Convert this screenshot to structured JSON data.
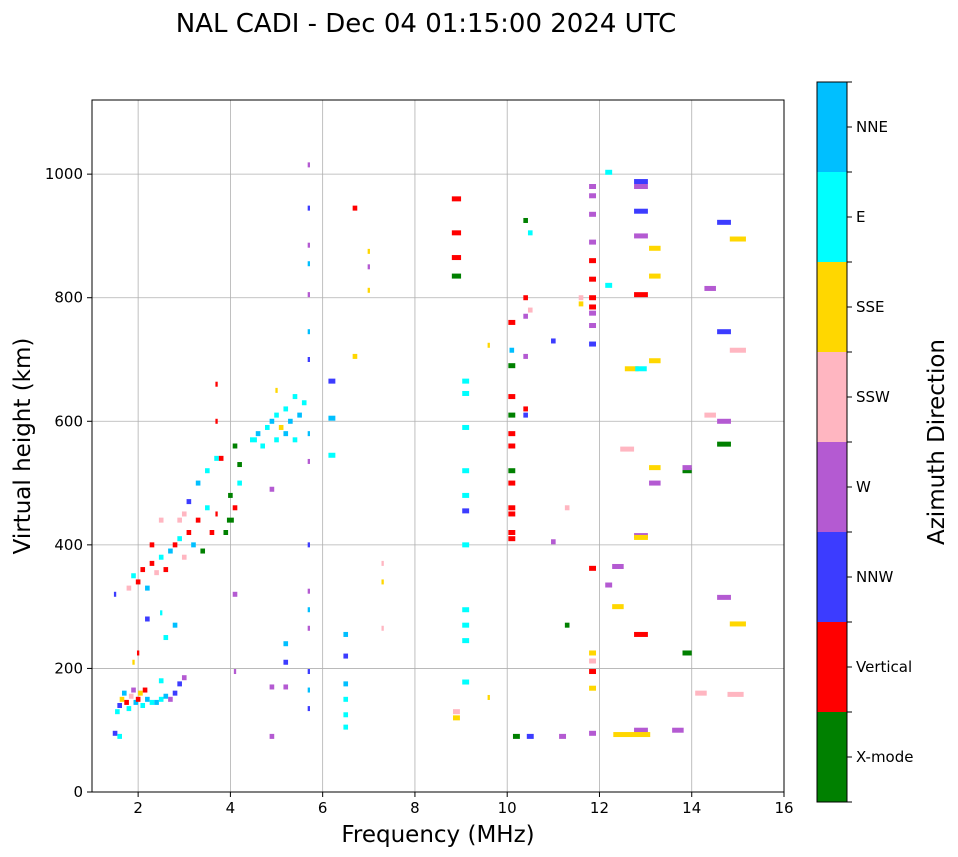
{
  "chart_data": {
    "type": "scatter",
    "title": "NAL CADI - Dec 04 01:15:00 2024 UTC",
    "xlabel": "Frequency (MHz)",
    "ylabel": "Virtual height (km)",
    "xlim": [
      1,
      16
    ],
    "ylim": [
      0,
      1120
    ],
    "xticks": [
      2,
      4,
      6,
      8,
      10,
      12,
      14,
      16
    ],
    "yticks": [
      0,
      200,
      400,
      600,
      800,
      1000
    ],
    "grid": true,
    "colorbar": {
      "label": "Azimuth Direction",
      "categories": [
        "X-mode",
        "Vertical",
        "NNW",
        "W",
        "SSW",
        "SSE",
        "E",
        "NNE"
      ],
      "colors": [
        "#008000",
        "#ff0000",
        "#3c3cff",
        "#b45ad2",
        "#ffb6c1",
        "#ffd700",
        "#00ffff",
        "#00bfff"
      ]
    },
    "points_format": [
      "frequency_mhz",
      "height_km",
      "category_index",
      "width_mhz"
    ],
    "points": [
      [
        1.5,
        95,
        2,
        0.1
      ],
      [
        1.6,
        90,
        6,
        0.1
      ],
      [
        1.55,
        130,
        6,
        0.1
      ],
      [
        1.6,
        140,
        2,
        0.1
      ],
      [
        1.65,
        150,
        5,
        0.1
      ],
      [
        1.7,
        160,
        7,
        0.1
      ],
      [
        1.75,
        145,
        1,
        0.1
      ],
      [
        1.8,
        135,
        6,
        0.1
      ],
      [
        1.85,
        155,
        4,
        0.1
      ],
      [
        1.9,
        165,
        3,
        0.1
      ],
      [
        1.95,
        145,
        7,
        0.1
      ],
      [
        2.0,
        150,
        1,
        0.1
      ],
      [
        2.05,
        160,
        5,
        0.1
      ],
      [
        2.1,
        140,
        6,
        0.1
      ],
      [
        2.15,
        165,
        1,
        0.1
      ],
      [
        2.2,
        150,
        7,
        0.1
      ],
      [
        2.3,
        145,
        6,
        0.1
      ],
      [
        2.4,
        145,
        7,
        0.1
      ],
      [
        2.5,
        150,
        6,
        0.1
      ],
      [
        2.6,
        155,
        7,
        0.1
      ],
      [
        2.7,
        150,
        3,
        0.1
      ],
      [
        2.8,
        160,
        2,
        0.1
      ],
      [
        2.9,
        175,
        2,
        0.1
      ],
      [
        3.0,
        185,
        3,
        0.1
      ],
      [
        2.0,
        225,
        1,
        0.05
      ],
      [
        1.9,
        210,
        5,
        0.05
      ],
      [
        2.5,
        180,
        6,
        0.1
      ],
      [
        2.6,
        250,
        6,
        0.1
      ],
      [
        2.8,
        270,
        7,
        0.1
      ],
      [
        1.5,
        320,
        2,
        0.05
      ],
      [
        1.8,
        330,
        4,
        0.1
      ],
      [
        1.9,
        350,
        6,
        0.1
      ],
      [
        2.0,
        340,
        1,
        0.1
      ],
      [
        2.1,
        360,
        1,
        0.1
      ],
      [
        2.2,
        330,
        7,
        0.1
      ],
      [
        2.3,
        370,
        1,
        0.1
      ],
      [
        2.4,
        355,
        4,
        0.1
      ],
      [
        2.5,
        380,
        6,
        0.1
      ],
      [
        2.6,
        360,
        1,
        0.1
      ],
      [
        2.7,
        390,
        7,
        0.1
      ],
      [
        2.8,
        400,
        1,
        0.1
      ],
      [
        2.9,
        410,
        6,
        0.1
      ],
      [
        3.0,
        380,
        4,
        0.1
      ],
      [
        3.1,
        420,
        1,
        0.1
      ],
      [
        3.2,
        400,
        7,
        0.1
      ],
      [
        3.3,
        440,
        1,
        0.1
      ],
      [
        3.4,
        390,
        0,
        0.1
      ],
      [
        3.5,
        460,
        6,
        0.1
      ],
      [
        3.6,
        420,
        1,
        0.1
      ],
      [
        3.7,
        450,
        1,
        0.05
      ],
      [
        3.0,
        450,
        4,
        0.1
      ],
      [
        2.9,
        440,
        4,
        0.1
      ],
      [
        3.1,
        470,
        2,
        0.1
      ],
      [
        3.3,
        500,
        7,
        0.1
      ],
      [
        3.5,
        520,
        6,
        0.1
      ],
      [
        3.7,
        540,
        6,
        0.1
      ],
      [
        2.5,
        440,
        4,
        0.1
      ],
      [
        2.3,
        400,
        1,
        0.1
      ],
      [
        2.2,
        280,
        2,
        0.1
      ],
      [
        2.5,
        290,
        6,
        0.05
      ],
      [
        3.8,
        540,
        1,
        0.1
      ],
      [
        3.9,
        420,
        0,
        0.1
      ],
      [
        4.0,
        440,
        0,
        0.15
      ],
      [
        4.0,
        480,
        0,
        0.1
      ],
      [
        4.1,
        460,
        1,
        0.1
      ],
      [
        4.2,
        500,
        6,
        0.1
      ],
      [
        4.2,
        530,
        0,
        0.1
      ],
      [
        4.1,
        560,
        0,
        0.1
      ],
      [
        3.7,
        600,
        1,
        0.05
      ],
      [
        3.7,
        660,
        1,
        0.05
      ],
      [
        4.1,
        320,
        3,
        0.1
      ],
      [
        4.1,
        195,
        3,
        0.05
      ],
      [
        4.5,
        570,
        6,
        0.15
      ],
      [
        4.6,
        580,
        7,
        0.1
      ],
      [
        4.7,
        560,
        6,
        0.1
      ],
      [
        4.8,
        590,
        6,
        0.1
      ],
      [
        4.9,
        600,
        7,
        0.1
      ],
      [
        5.0,
        610,
        6,
        0.1
      ],
      [
        5.1,
        590,
        5,
        0.1
      ],
      [
        5.2,
        620,
        6,
        0.1
      ],
      [
        5.3,
        600,
        7,
        0.1
      ],
      [
        5.4,
        640,
        6,
        0.1
      ],
      [
        5.5,
        610,
        7,
        0.1
      ],
      [
        5.6,
        630,
        6,
        0.1
      ],
      [
        5.0,
        570,
        6,
        0.1
      ],
      [
        5.2,
        580,
        7,
        0.1
      ],
      [
        5.4,
        570,
        6,
        0.1
      ],
      [
        5.0,
        650,
        5,
        0.05
      ],
      [
        4.9,
        490,
        3,
        0.1
      ],
      [
        4.9,
        170,
        3,
        0.1
      ],
      [
        4.9,
        90,
        3,
        0.1
      ],
      [
        5.2,
        170,
        3,
        0.1
      ],
      [
        5.2,
        240,
        7,
        0.1
      ],
      [
        5.2,
        210,
        2,
        0.1
      ],
      [
        5.7,
        1015,
        3,
        0.05
      ],
      [
        5.7,
        945,
        2,
        0.05
      ],
      [
        5.7,
        885,
        3,
        0.05
      ],
      [
        5.7,
        855,
        7,
        0.05
      ],
      [
        5.7,
        805,
        3,
        0.05
      ],
      [
        5.7,
        745,
        7,
        0.05
      ],
      [
        5.7,
        700,
        2,
        0.05
      ],
      [
        5.7,
        580,
        7,
        0.05
      ],
      [
        5.7,
        535,
        3,
        0.05
      ],
      [
        5.7,
        400,
        2,
        0.05
      ],
      [
        5.7,
        325,
        3,
        0.05
      ],
      [
        5.7,
        295,
        7,
        0.05
      ],
      [
        5.7,
        265,
        3,
        0.05
      ],
      [
        5.7,
        195,
        2,
        0.05
      ],
      [
        5.7,
        165,
        7,
        0.05
      ],
      [
        5.7,
        135,
        2,
        0.05
      ],
      [
        6.2,
        665,
        2,
        0.15
      ],
      [
        6.2,
        605,
        7,
        0.15
      ],
      [
        6.2,
        545,
        6,
        0.15
      ],
      [
        6.5,
        255,
        7,
        0.1
      ],
      [
        6.5,
        220,
        2,
        0.1
      ],
      [
        6.5,
        175,
        7,
        0.1
      ],
      [
        6.5,
        150,
        6,
        0.1
      ],
      [
        6.5,
        125,
        6,
        0.1
      ],
      [
        6.5,
        105,
        6,
        0.1
      ],
      [
        6.7,
        945,
        1,
        0.1
      ],
      [
        6.7,
        705,
        5,
        0.1
      ],
      [
        7.0,
        875,
        5,
        0.05
      ],
      [
        7.0,
        850,
        3,
        0.05
      ],
      [
        7.0,
        812,
        5,
        0.05
      ],
      [
        7.3,
        370,
        4,
        0.05
      ],
      [
        7.3,
        340,
        5,
        0.05
      ],
      [
        7.3,
        265,
        4,
        0.05
      ],
      [
        8.9,
        960,
        1,
        0.2
      ],
      [
        8.9,
        905,
        1,
        0.2
      ],
      [
        8.9,
        865,
        1,
        0.2
      ],
      [
        8.9,
        835,
        0,
        0.2
      ],
      [
        8.9,
        130,
        4,
        0.15
      ],
      [
        8.9,
        120,
        5,
        0.15
      ],
      [
        9.1,
        665,
        6,
        0.15
      ],
      [
        9.1,
        645,
        6,
        0.15
      ],
      [
        9.1,
        590,
        6,
        0.15
      ],
      [
        9.1,
        520,
        6,
        0.15
      ],
      [
        9.1,
        480,
        6,
        0.15
      ],
      [
        9.1,
        455,
        2,
        0.15
      ],
      [
        9.1,
        400,
        6,
        0.15
      ],
      [
        9.1,
        295,
        6,
        0.15
      ],
      [
        9.1,
        270,
        6,
        0.15
      ],
      [
        9.1,
        245,
        6,
        0.15
      ],
      [
        9.1,
        178,
        6,
        0.15
      ],
      [
        9.6,
        723,
        5,
        0.05
      ],
      [
        9.6,
        153,
        5,
        0.05
      ],
      [
        10.1,
        760,
        1,
        0.15
      ],
      [
        10.1,
        690,
        0,
        0.15
      ],
      [
        10.1,
        640,
        1,
        0.15
      ],
      [
        10.1,
        610,
        0,
        0.15
      ],
      [
        10.1,
        580,
        1,
        0.15
      ],
      [
        10.1,
        560,
        1,
        0.15
      ],
      [
        10.1,
        520,
        0,
        0.15
      ],
      [
        10.1,
        500,
        1,
        0.15
      ],
      [
        10.1,
        460,
        1,
        0.15
      ],
      [
        10.1,
        450,
        1,
        0.15
      ],
      [
        10.1,
        420,
        1,
        0.15
      ],
      [
        10.1,
        410,
        1,
        0.15
      ],
      [
        10.1,
        715,
        7,
        0.1
      ],
      [
        10.2,
        90,
        0,
        0.15
      ],
      [
        10.4,
        925,
        0,
        0.1
      ],
      [
        10.4,
        800,
        1,
        0.1
      ],
      [
        10.4,
        770,
        3,
        0.1
      ],
      [
        10.4,
        705,
        3,
        0.1
      ],
      [
        10.4,
        620,
        1,
        0.1
      ],
      [
        10.4,
        610,
        2,
        0.1
      ],
      [
        10.5,
        905,
        6,
        0.1
      ],
      [
        10.5,
        780,
        4,
        0.1
      ],
      [
        10.5,
        90,
        2,
        0.15
      ],
      [
        11.0,
        730,
        2,
        0.1
      ],
      [
        11.0,
        405,
        3,
        0.1
      ],
      [
        11.3,
        460,
        4,
        0.1
      ],
      [
        11.2,
        90,
        3,
        0.15
      ],
      [
        11.85,
        980,
        3,
        0.15
      ],
      [
        11.85,
        965,
        3,
        0.15
      ],
      [
        11.85,
        935,
        3,
        0.15
      ],
      [
        11.85,
        890,
        3,
        0.15
      ],
      [
        11.85,
        860,
        1,
        0.15
      ],
      [
        11.85,
        830,
        1,
        0.15
      ],
      [
        11.85,
        800,
        1,
        0.15
      ],
      [
        11.85,
        785,
        1,
        0.15
      ],
      [
        11.85,
        775,
        3,
        0.15
      ],
      [
        11.85,
        755,
        3,
        0.15
      ],
      [
        11.85,
        725,
        2,
        0.15
      ],
      [
        11.85,
        362,
        1,
        0.15
      ],
      [
        11.85,
        225,
        5,
        0.15
      ],
      [
        11.85,
        212,
        4,
        0.15
      ],
      [
        11.85,
        195,
        1,
        0.15
      ],
      [
        11.85,
        168,
        5,
        0.15
      ],
      [
        11.85,
        95,
        3,
        0.15
      ],
      [
        11.6,
        800,
        4,
        0.1
      ],
      [
        11.6,
        790,
        5,
        0.1
      ],
      [
        11.3,
        270,
        0,
        0.1
      ],
      [
        12.2,
        1003,
        6,
        0.15
      ],
      [
        12.2,
        820,
        6,
        0.15
      ],
      [
        12.2,
        335,
        3,
        0.15
      ],
      [
        12.4,
        365,
        3,
        0.25
      ],
      [
        12.4,
        300,
        5,
        0.25
      ],
      [
        12.7,
        685,
        5,
        0.3
      ],
      [
        12.6,
        555,
        4,
        0.3
      ],
      [
        12.9,
        988,
        2,
        0.3
      ],
      [
        12.9,
        980,
        3,
        0.3
      ],
      [
        12.9,
        940,
        2,
        0.3
      ],
      [
        12.9,
        900,
        3,
        0.3
      ],
      [
        12.9,
        805,
        1,
        0.3
      ],
      [
        12.9,
        685,
        6,
        0.25
      ],
      [
        12.9,
        415,
        3,
        0.3
      ],
      [
        12.9,
        412,
        5,
        0.3
      ],
      [
        12.9,
        255,
        1,
        0.3
      ],
      [
        12.9,
        100,
        3,
        0.3
      ],
      [
        12.7,
        93,
        5,
        0.8
      ],
      [
        13.2,
        880,
        5,
        0.25
      ],
      [
        13.2,
        835,
        5,
        0.25
      ],
      [
        13.2,
        698,
        5,
        0.25
      ],
      [
        13.2,
        525,
        5,
        0.25
      ],
      [
        13.2,
        500,
        3,
        0.25
      ],
      [
        13.7,
        100,
        3,
        0.25
      ],
      [
        13.9,
        520,
        0,
        0.2
      ],
      [
        13.9,
        525,
        3,
        0.2
      ],
      [
        13.9,
        225,
        0,
        0.2
      ],
      [
        14.2,
        160,
        4,
        0.25
      ],
      [
        14.4,
        815,
        3,
        0.25
      ],
      [
        14.4,
        610,
        4,
        0.25
      ],
      [
        14.7,
        922,
        2,
        0.3
      ],
      [
        14.7,
        745,
        2,
        0.3
      ],
      [
        14.7,
        600,
        3,
        0.3
      ],
      [
        14.7,
        563,
        0,
        0.3
      ],
      [
        14.7,
        315,
        3,
        0.3
      ],
      [
        15.0,
        895,
        5,
        0.35
      ],
      [
        15.0,
        715,
        4,
        0.35
      ],
      [
        15.0,
        272,
        5,
        0.35
      ],
      [
        14.95,
        158,
        4,
        0.35
      ]
    ]
  }
}
